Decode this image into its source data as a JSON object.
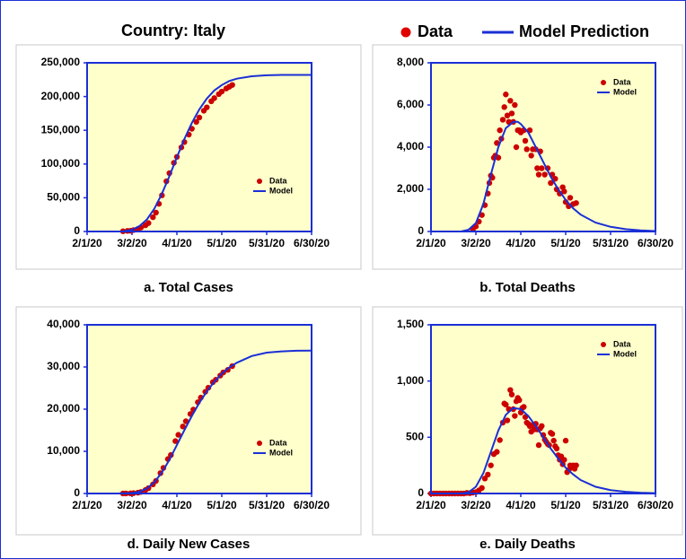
{
  "header": "Country: Italy",
  "legend": {
    "data": "Data",
    "model": "Model Prediction"
  },
  "chart_data": [
    {
      "type": "line",
      "title": "a. Total Cases",
      "legend_position": "lower right",
      "background": "#ffffcc",
      "xlim": [
        0,
        150
      ],
      "xticks": [
        {
          "value": 0,
          "label": "2/1/20"
        },
        {
          "value": 30,
          "label": "3/2/20"
        },
        {
          "value": 60,
          "label": "4/1/20"
        },
        {
          "value": 90,
          "label": "5/1/20"
        },
        {
          "value": 120,
          "label": "5/31/20"
        },
        {
          "value": 150,
          "label": "6/30/20"
        }
      ],
      "ylim": [
        0,
        250000
      ],
      "yticks": [
        0,
        {
          "value": 50000,
          "label": "50,000"
        },
        {
          "value": 100000,
          "label": "100,000"
        },
        {
          "value": 150000,
          "label": "150,000"
        },
        {
          "value": 200000,
          "label": "200,000"
        },
        {
          "value": 250000,
          "label": "250,000"
        }
      ],
      "series": [
        {
          "name": "Data",
          "color": "#cc0000",
          "style": "markers",
          "x": [
            24,
            27,
            29,
            31,
            34,
            36,
            39,
            41,
            44,
            46,
            48,
            50,
            53,
            55,
            58,
            60,
            63,
            65,
            68,
            70,
            73,
            75,
            78,
            80,
            83,
            85,
            88,
            90,
            93,
            95,
            97
          ],
          "values": [
            322,
            888,
            1128,
            2036,
            3858,
            5883,
            9172,
            12462,
            21157,
            27980,
            41035,
            53578,
            74386,
            86498,
            101739,
            110574,
            124632,
            132547,
            143626,
            152271,
            162488,
            168941,
            178972,
            183957,
            192994,
            197675,
            203591,
            207428,
            211938,
            214457,
            217185
          ]
        },
        {
          "name": "Model",
          "color": "#1a2fd6",
          "style": "line",
          "x": [
            25,
            30,
            35,
            40,
            45,
            50,
            55,
            60,
            65,
            70,
            75,
            80,
            85,
            90,
            95,
            100,
            110,
            120,
            130,
            140,
            150
          ],
          "values": [
            500,
            2500,
            8000,
            18000,
            34000,
            56000,
            82000,
            110000,
            137000,
            161000,
            181000,
            197000,
            209000,
            217000,
            223000,
            226500,
            230000,
            231500,
            232000,
            232000,
            232000
          ]
        }
      ]
    },
    {
      "type": "line",
      "title": "b. Total Deaths",
      "legend_position": "upper right",
      "background": "#ffffcc",
      "xlim": [
        0,
        150
      ],
      "xticks": [
        {
          "value": 0,
          "label": "2/1/20"
        },
        {
          "value": 30,
          "label": "3/2/20"
        },
        {
          "value": 60,
          "label": "4/1/20"
        },
        {
          "value": 90,
          "label": "5/1/20"
        },
        {
          "value": 120,
          "label": "5/31/20"
        },
        {
          "value": 150,
          "label": "6/30/20"
        }
      ],
      "ylim": [
        0,
        8000
      ],
      "yticks": [
        0,
        {
          "value": 2000,
          "label": "2,000"
        },
        {
          "value": 4000,
          "label": "4,000"
        },
        {
          "value": 6000,
          "label": "6,000"
        },
        {
          "value": 8000,
          "label": "8,000"
        }
      ],
      "series": [
        {
          "name": "Data",
          "color": "#cc0000",
          "style": "markers",
          "x": [
            28,
            30,
            32,
            34,
            36,
            38,
            39,
            40,
            41,
            42,
            43,
            44,
            45,
            46,
            47,
            48,
            49,
            50,
            51,
            52,
            53,
            54,
            55,
            56,
            57,
            58,
            59,
            60,
            62,
            63,
            64,
            66,
            67,
            68,
            70,
            71,
            72,
            73,
            74,
            76,
            78,
            80,
            81,
            83,
            84,
            86,
            88,
            89,
            90,
            92,
            93,
            95,
            97
          ],
          "values": [
            90,
            240,
            470,
            780,
            1250,
            1800,
            2300,
            2650,
            2550,
            3500,
            3600,
            4200,
            3500,
            4800,
            4400,
            5300,
            5900,
            6500,
            5500,
            5200,
            6200,
            5600,
            5200,
            6000,
            4000,
            4800,
            4800,
            4700,
            4800,
            4300,
            3900,
            4800,
            3600,
            3900,
            3900,
            3000,
            2700,
            3800,
            3000,
            2700,
            3000,
            2300,
            2700,
            2500,
            2000,
            1800,
            2100,
            1900,
            1400,
            1200,
            1600,
            1300,
            1350
          ]
        },
        {
          "name": "Model",
          "color": "#1a2fd6",
          "style": "line",
          "x": [
            20,
            25,
            30,
            35,
            40,
            45,
            50,
            55,
            58,
            60,
            65,
            70,
            75,
            80,
            85,
            90,
            95,
            100,
            110,
            120,
            130,
            140,
            150
          ],
          "values": [
            0,
            80,
            400,
            1300,
            2700,
            4000,
            4900,
            5200,
            5200,
            5100,
            4700,
            4000,
            3300,
            2600,
            2000,
            1500,
            1100,
            800,
            420,
            220,
            110,
            50,
            20
          ]
        }
      ]
    },
    {
      "type": "line",
      "title": "d. Daily New Cases",
      "legend_position": "lower right",
      "background": "#ffffcc",
      "xlim": [
        0,
        150
      ],
      "xticks": [
        {
          "value": 0,
          "label": "2/1/20"
        },
        {
          "value": 30,
          "label": "3/2/20"
        },
        {
          "value": 60,
          "label": "4/1/20"
        },
        {
          "value": 90,
          "label": "5/1/20"
        },
        {
          "value": 120,
          "label": "5/31/20"
        },
        {
          "value": 150,
          "label": "6/30/20"
        }
      ],
      "ylim": [
        0,
        40000
      ],
      "yticks": [
        0,
        {
          "value": 10000,
          "label": "10,000"
        },
        {
          "value": 20000,
          "label": "20,000"
        },
        {
          "value": 30000,
          "label": "30,000"
        },
        {
          "value": 40000,
          "label": "40,000"
        }
      ],
      "series": [
        {
          "name": "Data",
          "color": "#cc0000",
          "style": "markers",
          "x": [
            24,
            26,
            29,
            31,
            34,
            36,
            39,
            41,
            44,
            46,
            49,
            51,
            54,
            56,
            59,
            61,
            64,
            66,
            69,
            71,
            74,
            76,
            79,
            81,
            84,
            86,
            89,
            91,
            94,
            97
          ],
          "values": [
            7,
            12,
            34,
            79,
            197,
            366,
            827,
            1266,
            2158,
            2978,
            4825,
            6077,
            8165,
            9134,
            12428,
            13917,
            15887,
            17127,
            18849,
            19899,
            21645,
            22745,
            24114,
            25085,
            26384,
            26977,
            27967,
            28710,
            29315,
            30201
          ]
        },
        {
          "name": "Model",
          "color": "#1a2fd6",
          "style": "line",
          "x": [
            20,
            30,
            35,
            40,
            45,
            50,
            55,
            60,
            65,
            70,
            75,
            80,
            85,
            90,
            95,
            100,
            110,
            120,
            130,
            140,
            150
          ],
          "values": [
            0,
            100,
            400,
            1200,
            2700,
            5000,
            8000,
            11500,
            15000,
            18400,
            21500,
            24200,
            26500,
            28400,
            29900,
            31000,
            32600,
            33400,
            33700,
            33850,
            33900
          ]
        }
      ]
    },
    {
      "type": "line",
      "title": "e. Daily Deaths",
      "legend_position": "upper right",
      "background": "#ffffcc",
      "xlim": [
        0,
        150
      ],
      "xticks": [
        {
          "value": 0,
          "label": "2/1/20"
        },
        {
          "value": 30,
          "label": "3/2/20"
        },
        {
          "value": 60,
          "label": "4/1/20"
        },
        {
          "value": 90,
          "label": "5/1/20"
        },
        {
          "value": 120,
          "label": "5/31/20"
        },
        {
          "value": 150,
          "label": "6/30/20"
        }
      ],
      "ylim": [
        0,
        1500
      ],
      "yticks": [
        0,
        500,
        {
          "value": 1000,
          "label": "1,000"
        },
        {
          "value": 1500,
          "label": "1,500"
        }
      ],
      "series": [
        {
          "name": "Data",
          "color": "#cc0000",
          "style": "markers",
          "x": [
            0,
            2,
            4,
            6,
            8,
            10,
            12,
            14,
            16,
            18,
            20,
            22,
            24,
            26,
            28,
            30,
            32,
            34,
            36,
            38,
            40,
            42,
            44,
            46,
            48,
            49,
            50,
            51,
            52,
            53,
            54,
            55,
            56,
            57,
            58,
            59,
            60,
            61,
            62,
            63,
            64,
            65,
            66,
            67,
            68,
            69,
            70,
            71,
            72,
            73,
            74,
            75,
            76,
            77,
            78,
            79,
            80,
            81,
            82,
            83,
            84,
            85,
            86,
            87,
            88,
            89,
            90,
            91,
            92,
            93,
            94,
            95,
            96,
            97
          ],
          "values": [
            0,
            0,
            0,
            0,
            0,
            0,
            0,
            0,
            0,
            0,
            0,
            0,
            5,
            3,
            8,
            12,
            27,
            49,
            133,
            168,
            250,
            350,
            370,
            475,
            630,
            800,
            790,
            650,
            750,
            920,
            880,
            750,
            690,
            820,
            850,
            830,
            720,
            760,
            770,
            680,
            630,
            620,
            600,
            550,
            610,
            570,
            620,
            570,
            430,
            580,
            600,
            520,
            480,
            460,
            440,
            430,
            540,
            530,
            470,
            420,
            400,
            340,
            300,
            330,
            260,
            300,
            470,
            190,
            210,
            250,
            230,
            250,
            220,
            250
          ]
        },
        {
          "name": "Model",
          "color": "#1a2fd6",
          "style": "line",
          "x": [
            20,
            25,
            30,
            35,
            40,
            45,
            50,
            55,
            60,
            65,
            70,
            75,
            80,
            85,
            90,
            95,
            100,
            110,
            120,
            130,
            140,
            150
          ],
          "values": [
            0,
            10,
            60,
            180,
            370,
            560,
            700,
            760,
            750,
            690,
            600,
            500,
            400,
            310,
            230,
            170,
            120,
            60,
            30,
            15,
            7,
            3
          ]
        }
      ]
    }
  ]
}
